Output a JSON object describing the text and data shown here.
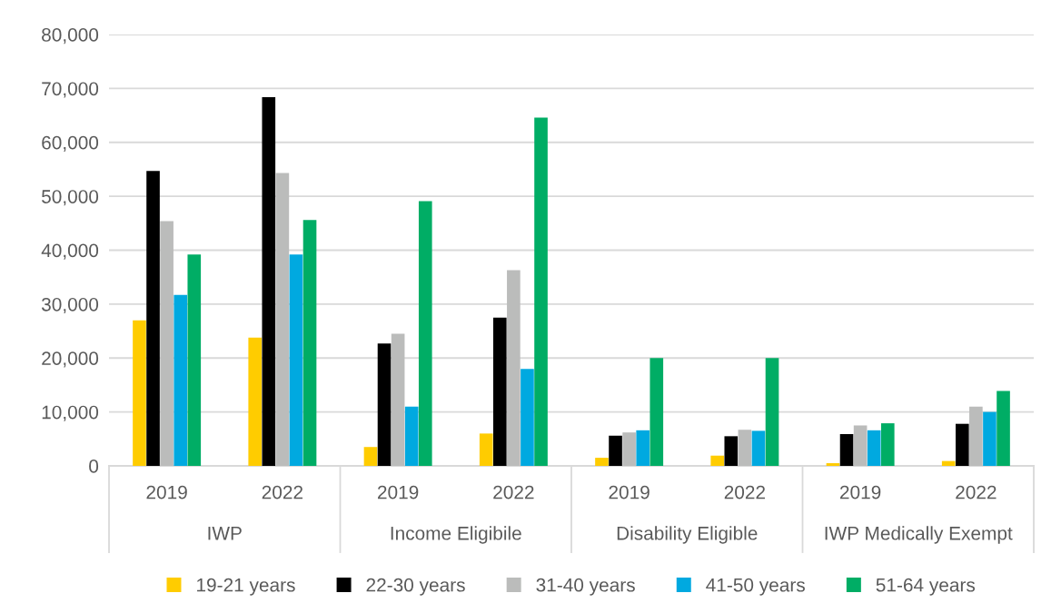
{
  "chart_data": {
    "type": "bar",
    "categories": [
      "2019",
      "2022",
      "2019",
      "2022",
      "2019",
      "2022",
      "2019",
      "2022"
    ],
    "annotations": [
      "IWP",
      "Income Eligibile",
      "Disability Eligible",
      "IWP Medically Exempt"
    ],
    "series": [
      {
        "name": "19-21 years",
        "color": "#ffcc00",
        "values": [
          27000,
          23800,
          3500,
          6000,
          1500,
          1900,
          500,
          900
        ]
      },
      {
        "name": "22-30 years",
        "color": "#000000",
        "values": [
          54700,
          68400,
          22700,
          27500,
          5600,
          5500,
          5900,
          7800
        ]
      },
      {
        "name": "31-40 years",
        "color": "#bbbcbb",
        "values": [
          45400,
          54300,
          24500,
          36300,
          6200,
          6700,
          7500,
          11000
        ]
      },
      {
        "name": "41-50 years",
        "color": "#00a9e0",
        "values": [
          31700,
          39200,
          11000,
          18000,
          6600,
          6500,
          6600,
          10000
        ]
      },
      {
        "name": "51-64 years",
        "color": "#00ad65",
        "values": [
          39200,
          45600,
          49100,
          64600,
          20000,
          20000,
          7900,
          13900
        ]
      }
    ],
    "ylim": [
      0,
      80000
    ],
    "yticks": [
      {
        "value": 0,
        "label": "0"
      },
      {
        "value": 10000,
        "label": "10,000"
      },
      {
        "value": 20000,
        "label": "20,000"
      },
      {
        "value": 30000,
        "label": "30,000"
      },
      {
        "value": 40000,
        "label": "40,000"
      },
      {
        "value": 50000,
        "label": "50,000"
      },
      {
        "value": 60000,
        "label": "60,000"
      },
      {
        "value": 70000,
        "label": "70,000"
      },
      {
        "value": 80000,
        "label": "80,000"
      }
    ],
    "grid": "y",
    "legend": "bottom"
  }
}
